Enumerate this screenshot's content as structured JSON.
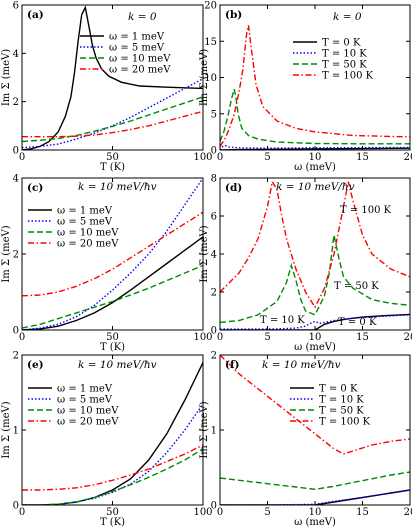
{
  "colors": {
    "black": "#000000",
    "blue": "#0000ff",
    "green": "#008a00",
    "red": "#ff0000"
  },
  "chart_data": [
    {
      "type": "line",
      "panel_label": "(a)",
      "title": "k = 0",
      "xlabel": "T (K)",
      "ylabel": "Im Σ+ (meV)",
      "xlim": [
        0,
        100
      ],
      "ylim": [
        0,
        6
      ],
      "xticks": [
        0,
        50,
        100
      ],
      "yticks": [
        0,
        2,
        4,
        6
      ],
      "xtick_labels": [
        "0",
        "50",
        "100"
      ],
      "ytick_labels": [
        "0",
        "2",
        "4",
        "6"
      ],
      "legend_position": "top-right",
      "series": [
        {
          "name": "ω = 1 meV",
          "color": "#000000",
          "dash": "solid",
          "x": [
            0,
            5,
            10,
            15,
            20,
            24,
            27,
            29,
            31,
            33,
            35,
            37,
            39,
            41,
            44,
            48,
            55,
            65,
            80,
            100
          ],
          "y": [
            0,
            0.05,
            0.15,
            0.35,
            0.75,
            1.4,
            2.2,
            3.2,
            4.5,
            5.6,
            5.9,
            5.1,
            4.3,
            3.8,
            3.35,
            3.05,
            2.8,
            2.65,
            2.6,
            2.55
          ]
        },
        {
          "name": "ω = 5 meV",
          "color": "#0000ff",
          "dash": "dot",
          "x": [
            0,
            10,
            20,
            30,
            40,
            50,
            60,
            70,
            80,
            90,
            100
          ],
          "y": [
            0.1,
            0.15,
            0.25,
            0.45,
            0.7,
            1.0,
            1.35,
            1.75,
            2.15,
            2.55,
            2.95
          ]
        },
        {
          "name": "ω = 10 meV",
          "color": "#008a00",
          "dash": "dash",
          "x": [
            0,
            10,
            20,
            30,
            40,
            50,
            60,
            70,
            80,
            90,
            100
          ],
          "y": [
            0.35,
            0.4,
            0.48,
            0.6,
            0.78,
            0.98,
            1.2,
            1.45,
            1.7,
            1.95,
            2.2
          ]
        },
        {
          "name": "ω = 20 meV",
          "color": "#ff0000",
          "dash": "dashdot",
          "x": [
            0,
            20,
            30,
            40,
            50,
            60,
            70,
            80,
            90,
            100
          ],
          "y": [
            0.55,
            0.55,
            0.57,
            0.62,
            0.72,
            0.85,
            1.0,
            1.2,
            1.4,
            1.6
          ]
        }
      ]
    },
    {
      "type": "line",
      "panel_label": "(b)",
      "title": "k = 0",
      "xlabel": "ω (meV)",
      "ylabel": "Im Σ− (meV)",
      "xlim": [
        0,
        20
      ],
      "ylim": [
        0,
        20
      ],
      "xticks": [
        0,
        5,
        10,
        15,
        20
      ],
      "yticks": [
        0,
        5,
        10,
        15,
        20
      ],
      "xtick_labels": [
        "0",
        "5",
        "10",
        "15",
        "20"
      ],
      "ytick_labels": [
        "0",
        "5",
        "10",
        "15",
        "20"
      ],
      "legend_position": "right",
      "series": [
        {
          "name": "T = 0 K",
          "color": "#000000",
          "dash": "solid",
          "x": [
            0,
            2,
            5,
            10,
            15,
            20
          ],
          "y": [
            0,
            0.05,
            0.1,
            0.15,
            0.2,
            0.25
          ]
        },
        {
          "name": "T = 10 K",
          "color": "#0000ff",
          "dash": "dot",
          "x": [
            0,
            0.3,
            0.6,
            1,
            2,
            5,
            10,
            20
          ],
          "y": [
            0,
            0.5,
            0.6,
            0.4,
            0.3,
            0.25,
            0.3,
            0.35
          ]
        },
        {
          "name": "T = 50 K",
          "color": "#008a00",
          "dash": "dash",
          "x": [
            0,
            0.4,
            0.8,
            1.2,
            1.5,
            1.7,
            1.9,
            2.3,
            3,
            4,
            6,
            10,
            15,
            20
          ],
          "y": [
            1.2,
            2.5,
            4.5,
            7,
            8.4,
            7,
            5,
            3,
            2,
            1.5,
            1.1,
            0.9,
            0.85,
            0.85
          ]
        },
        {
          "name": "T = 100 K",
          "color": "#ff0000",
          "dash": "dashdot",
          "x": [
            0,
            0.5,
            1,
            1.5,
            2,
            2.4,
            2.8,
            3,
            3.3,
            3.8,
            4.5,
            6,
            8,
            10,
            14,
            20
          ],
          "y": [
            0.5,
            1.5,
            3,
            5,
            8,
            11,
            16,
            17.2,
            14,
            9,
            6,
            4,
            3,
            2.5,
            2,
            1.8
          ]
        }
      ]
    },
    {
      "type": "line",
      "panel_label": "(c)",
      "title": "k = 10 meV/ħvF",
      "xlabel": "T (K)",
      "ylabel": "Im Σ+ (meV)",
      "xlim": [
        0,
        100
      ],
      "ylim": [
        0,
        4
      ],
      "xticks": [
        0,
        50,
        100
      ],
      "yticks": [
        0,
        2,
        4
      ],
      "xtick_labels": [
        "0",
        "50",
        "100"
      ],
      "ytick_labels": [
        "0",
        "2",
        "4"
      ],
      "legend_position": "left",
      "series": [
        {
          "name": "ω = 1 meV",
          "color": "#000000",
          "dash": "solid",
          "x": [
            0,
            10,
            20,
            30,
            40,
            50,
            60,
            70,
            80,
            90,
            100
          ],
          "y": [
            0,
            0.03,
            0.1,
            0.25,
            0.45,
            0.72,
            1.05,
            1.4,
            1.75,
            2.1,
            2.45
          ]
        },
        {
          "name": "ω = 5 meV",
          "color": "#0000ff",
          "dash": "dot",
          "x": [
            0,
            10,
            20,
            30,
            40,
            50,
            60,
            70,
            80,
            90,
            100
          ],
          "y": [
            0,
            0.05,
            0.15,
            0.35,
            0.65,
            1.05,
            1.5,
            2.0,
            2.6,
            3.3,
            4.0
          ]
        },
        {
          "name": "ω = 10 meV",
          "color": "#008a00",
          "dash": "dash",
          "x": [
            0,
            10,
            20,
            30,
            40,
            50,
            60,
            70,
            80,
            90,
            100
          ],
          "y": [
            0.05,
            0.15,
            0.3,
            0.45,
            0.6,
            0.75,
            0.92,
            1.1,
            1.3,
            1.5,
            1.7
          ]
        },
        {
          "name": "ω = 20 meV",
          "color": "#ff0000",
          "dash": "dashdot",
          "x": [
            0,
            10,
            20,
            30,
            40,
            50,
            60,
            70,
            80,
            90,
            100
          ],
          "y": [
            0.9,
            0.92,
            1.0,
            1.15,
            1.35,
            1.6,
            1.9,
            2.2,
            2.5,
            2.8,
            3.1
          ]
        }
      ]
    },
    {
      "type": "line",
      "panel_label": "(d)",
      "title": "k = 10 meV/ħvF",
      "xlabel": "ω (meV)",
      "ylabel": "Im Σ− (meV)",
      "xlim": [
        0,
        20
      ],
      "ylim": [
        0,
        8
      ],
      "xticks": [
        0,
        5,
        10,
        15,
        20
      ],
      "yticks": [
        0,
        2,
        4,
        6,
        8
      ],
      "xtick_labels": [
        "0",
        "5",
        "10",
        "15",
        "20"
      ],
      "ytick_labels": [
        "0",
        "2",
        "4",
        "6",
        "8"
      ],
      "legend_position": "inline",
      "annotations": [
        "T = 100 K",
        "T = 50 K",
        "T = 10 K",
        "T = 0 K"
      ],
      "series": [
        {
          "name": "T = 0 K",
          "color": "#000000",
          "dash": "solid",
          "x": [
            0,
            10,
            10.5,
            11,
            12,
            13,
            14,
            15,
            17,
            20
          ],
          "y": [
            0,
            0,
            0.15,
            0.3,
            0.45,
            0.55,
            0.62,
            0.68,
            0.75,
            0.82
          ]
        },
        {
          "name": "T = 10 K",
          "color": "#0000ff",
          "dash": "dot",
          "x": [
            0,
            2,
            4,
            6,
            8,
            9,
            9.5,
            10,
            10.5,
            11,
            12,
            14,
            17,
            20
          ],
          "y": [
            0.05,
            0.05,
            0.05,
            0.06,
            0.1,
            0.2,
            0.35,
            0.45,
            0.35,
            0.4,
            0.5,
            0.62,
            0.72,
            0.8
          ]
        },
        {
          "name": "T = 50 K",
          "color": "#008a00",
          "dash": "dash",
          "x": [
            0,
            2,
            4,
            6,
            7,
            7.5,
            8,
            8.5,
            9,
            10,
            11,
            11.5,
            12,
            12.5,
            13,
            14,
            16,
            18,
            20
          ],
          "y": [
            0.4,
            0.5,
            0.8,
            1.5,
            2.5,
            3.4,
            2.6,
            1.6,
            1.0,
            0.8,
            1.8,
            3.0,
            5.0,
            3.8,
            2.8,
            2.2,
            1.6,
            1.4,
            1.3
          ]
        },
        {
          "name": "T = 100 K",
          "color": "#ff0000",
          "dash": "dashdot",
          "x": [
            0,
            1,
            2,
            3,
            4,
            5,
            5.5,
            6,
            6.5,
            7,
            8,
            9,
            10,
            11,
            12,
            13,
            13.5,
            14,
            15,
            16,
            18,
            20
          ],
          "y": [
            2.0,
            2.5,
            3.0,
            3.8,
            4.8,
            6.5,
            7.8,
            7.4,
            6.0,
            4.8,
            3.2,
            2.0,
            1.2,
            2.2,
            4.0,
            6.5,
            7.8,
            6.8,
            5.0,
            4.0,
            3.2,
            2.8
          ]
        }
      ]
    },
    {
      "type": "line",
      "panel_label": "(e)",
      "title": "k = 10 meV/ħvF",
      "xlabel": "T (K)",
      "ylabel": "Im Σ− (meV)",
      "xlim": [
        0,
        100
      ],
      "ylim": [
        0,
        2
      ],
      "xticks": [
        0,
        50,
        100
      ],
      "yticks": [
        0,
        1,
        2
      ],
      "xtick_labels": [
        "0",
        "50",
        "100"
      ],
      "ytick_labels": [
        "0",
        "1",
        "2"
      ],
      "legend_position": "top-left",
      "series": [
        {
          "name": "ω = 1 meV",
          "color": "#000000",
          "dash": "solid",
          "x": [
            0,
            10,
            20,
            30,
            40,
            50,
            60,
            70,
            80,
            90,
            100
          ],
          "y": [
            0,
            0,
            0.01,
            0.04,
            0.1,
            0.2,
            0.35,
            0.6,
            0.95,
            1.4,
            1.9
          ]
        },
        {
          "name": "ω = 5 meV",
          "color": "#0000ff",
          "dash": "dot",
          "x": [
            0,
            10,
            20,
            30,
            40,
            50,
            60,
            70,
            80,
            90,
            100
          ],
          "y": [
            0,
            0,
            0.01,
            0.04,
            0.09,
            0.17,
            0.28,
            0.45,
            0.7,
            1.0,
            1.35
          ]
        },
        {
          "name": "ω = 10 meV",
          "color": "#008a00",
          "dash": "dash",
          "x": [
            0,
            10,
            20,
            30,
            40,
            50,
            60,
            70,
            80,
            90,
            100
          ],
          "y": [
            0,
            0,
            0.01,
            0.04,
            0.1,
            0.18,
            0.27,
            0.37,
            0.48,
            0.6,
            0.75
          ]
        },
        {
          "name": "ω = 20 meV",
          "color": "#ff0000",
          "dash": "dashdot",
          "x": [
            0,
            10,
            20,
            30,
            40,
            50,
            60,
            70,
            80,
            90,
            100
          ],
          "y": [
            0.2,
            0.2,
            0.21,
            0.23,
            0.27,
            0.33,
            0.4,
            0.48,
            0.58,
            0.68,
            0.8
          ]
        }
      ]
    },
    {
      "type": "line",
      "panel_label": "(f)",
      "title": "k = 10 meV/ħvF",
      "xlabel": "ω (meV)",
      "ylabel": "Im Σ− (meV)",
      "xlim": [
        0,
        20
      ],
      "ylim": [
        0,
        2
      ],
      "xticks": [
        0,
        5,
        10,
        15,
        20
      ],
      "yticks": [
        0,
        1,
        2
      ],
      "xtick_labels": [
        "0",
        "5",
        "10",
        "15",
        "20"
      ],
      "ytick_labels": [
        "0",
        "1",
        "2"
      ],
      "legend_position": "top-right",
      "series": [
        {
          "name": "T = 0 K",
          "color": "#000000",
          "dash": "solid",
          "x": [
            0,
            10,
            12,
            15,
            18,
            20
          ],
          "y": [
            0,
            0,
            0.04,
            0.1,
            0.16,
            0.2
          ]
        },
        {
          "name": "T = 10 K",
          "color": "#0000ff",
          "dash": "dot",
          "x": [
            0,
            5,
            10,
            12,
            15,
            18,
            20
          ],
          "y": [
            0,
            0,
            0.01,
            0.05,
            0.1,
            0.16,
            0.2
          ]
        },
        {
          "name": "T = 50 K",
          "color": "#008a00",
          "dash": "dash",
          "x": [
            0,
            2,
            4,
            6,
            8,
            10,
            12,
            14,
            16,
            18,
            20
          ],
          "y": [
            0.36,
            0.33,
            0.3,
            0.27,
            0.24,
            0.21,
            0.25,
            0.3,
            0.35,
            0.4,
            0.44
          ]
        },
        {
          "name": "T = 100 K",
          "color": "#ff0000",
          "dash": "dashdot",
          "x": [
            0,
            2,
            4,
            6,
            8,
            10,
            12,
            13,
            14,
            16,
            18,
            20
          ],
          "y": [
            2.0,
            1.75,
            1.55,
            1.35,
            1.15,
            0.95,
            0.75,
            0.68,
            0.72,
            0.8,
            0.85,
            0.88
          ]
        }
      ]
    }
  ]
}
